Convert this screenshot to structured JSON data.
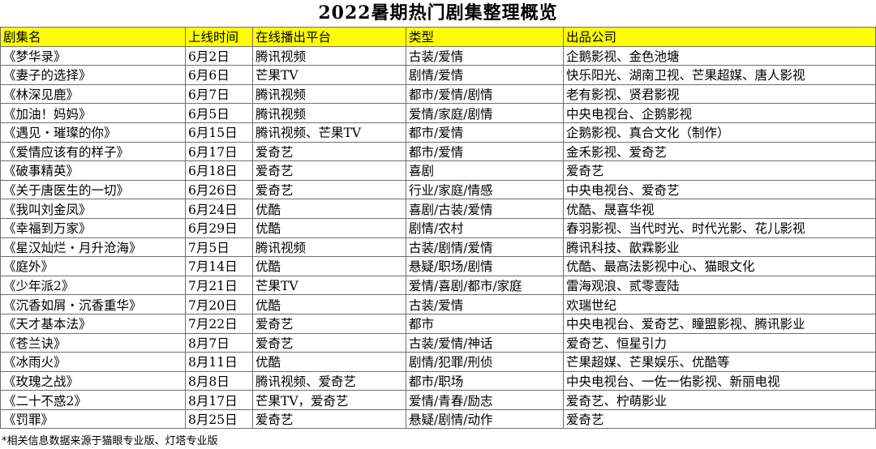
{
  "title": "2022暑期热门剧集整理概览",
  "header_color": "#ffff00",
  "columns": [
    "剧集名",
    "上线时间",
    "在线播出平台",
    "类型",
    "出品公司"
  ],
  "rows": [
    [
      "《梦华录》",
      "6月2日",
      "腾讯视频",
      "古装/爱情",
      "企鹅影视、金色池塘"
    ],
    [
      "《妻子的选择》",
      "6月6日",
      "芒果TV",
      "剧情/爱情",
      "快乐阳光、湖南卫视、芒果超媒、唐人影视"
    ],
    [
      "《林深见鹿》",
      "6月7日",
      "腾讯视频",
      "都市/爱情/剧情",
      "老有影视、贤君影视"
    ],
    [
      "《加油！妈妈》",
      "6月5日",
      "腾讯视频",
      "爱情/家庭/剧情",
      "中央电视台、企鹅影视"
    ],
    [
      "《遇见・璀璨的你》",
      "6月15日",
      "腾讯视频、芒果TV",
      "都市/爱情",
      "企鹅影视、真合文化（制作）"
    ],
    [
      "《爱情应该有的样子》",
      "6月17日",
      "爱奇艺",
      "都市/爱情",
      "金禾影视、爱奇艺"
    ],
    [
      "《破事精英》",
      "6月18日",
      "爱奇艺",
      "喜剧",
      "爱奇艺"
    ],
    [
      "《关于唐医生的一切》",
      "6月26日",
      "爱奇艺",
      "行业/家庭/情感",
      "中央电视台、爱奇艺"
    ],
    [
      "《我叫刘金凤》",
      "6月24日",
      "优酷",
      "喜剧/古装/爱情",
      "优酷、晟喜华视"
    ],
    [
      "《幸福到万家》",
      "6月29日",
      "优酷",
      "剧情/农村",
      "春羽影视、当代时光、时代光影、花儿影视"
    ],
    [
      "《星汉灿烂・月升沧海》",
      "7月5日",
      "腾讯视频",
      "古装/剧情/爱情",
      "腾讯科技、歆霖影业"
    ],
    [
      "《庭外》",
      "7月14日",
      "优酷",
      "悬疑/职场/剧情",
      "优酷、最高法影视中心、猫眼文化"
    ],
    [
      "《少年派2》",
      "7月21日",
      "芒果TV",
      "爱情/喜剧/都市/家庭",
      "雷海观浪、贰零壹陆"
    ],
    [
      "《沉香如屑・沉香重华》",
      "7月20日",
      "优酷",
      "古装/爱情",
      "欢瑞世纪"
    ],
    [
      "《天才基本法》",
      "7月22日",
      "爱奇艺",
      "都市",
      "中央电视台、爱奇艺、瞳盟影视、腾讯影业"
    ],
    [
      "《苍兰诀》",
      "8月7日",
      "爱奇艺",
      "古装/爱情/神话",
      "爱奇艺、恒星引力"
    ],
    [
      "《冰雨火》",
      "8月11日",
      "优酷",
      "剧情/犯罪/刑侦",
      "芒果超媒、芒果娱乐、优酷等"
    ],
    [
      "《玫瑰之战》",
      "8月8日",
      "腾讯视频、爱奇艺",
      "都市/职场",
      "中央电视台、一佐一佑影视、新丽电视"
    ],
    [
      "《二十不惑2》",
      "8月17日",
      "芒果TV，爱奇艺",
      "爱情/青春/励志",
      "爱奇艺、柠萌影业"
    ],
    [
      "《罚罪》",
      "8月25日",
      "爱奇艺",
      "悬疑/剧情/动作",
      "爱奇艺"
    ]
  ],
  "footnote": "*相关信息数据来源于猫眼专业版、灯塔专业版"
}
